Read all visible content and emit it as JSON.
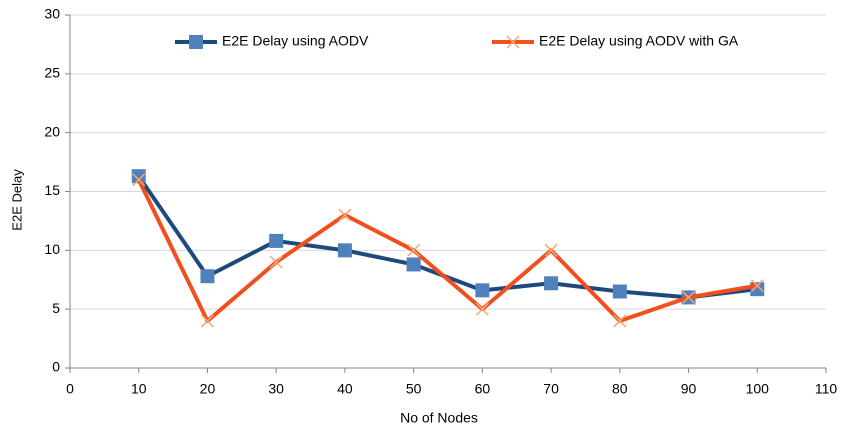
{
  "chart_data": {
    "type": "line",
    "x_label": "No of Nodes",
    "y_label": "E2E Delay",
    "x": [
      10,
      20,
      30,
      40,
      50,
      60,
      70,
      80,
      90,
      100
    ],
    "series": [
      {
        "name": "E2E Delay using AODV",
        "color": "#1f497d",
        "marker": "square",
        "marker_color": "#4f81bd",
        "values": [
          16.3,
          7.8,
          10.8,
          10,
          8.8,
          6.6,
          7.2,
          6.5,
          6,
          6.7
        ]
      },
      {
        "name": "E2E Delay using AODV with GA",
        "color": "#f24f1f",
        "marker": "x",
        "marker_color": "#f7a870",
        "values": [
          16,
          4,
          9,
          13,
          10,
          5,
          10,
          4,
          6,
          7
        ]
      }
    ],
    "xlim": [
      0,
      110
    ],
    "xticks": [
      0,
      10,
      20,
      30,
      40,
      50,
      60,
      70,
      80,
      90,
      100,
      110
    ],
    "ylim": [
      0,
      30
    ],
    "yticks": [
      0,
      5,
      10,
      15,
      20,
      25,
      30
    ],
    "grid": true,
    "legend": "top"
  }
}
